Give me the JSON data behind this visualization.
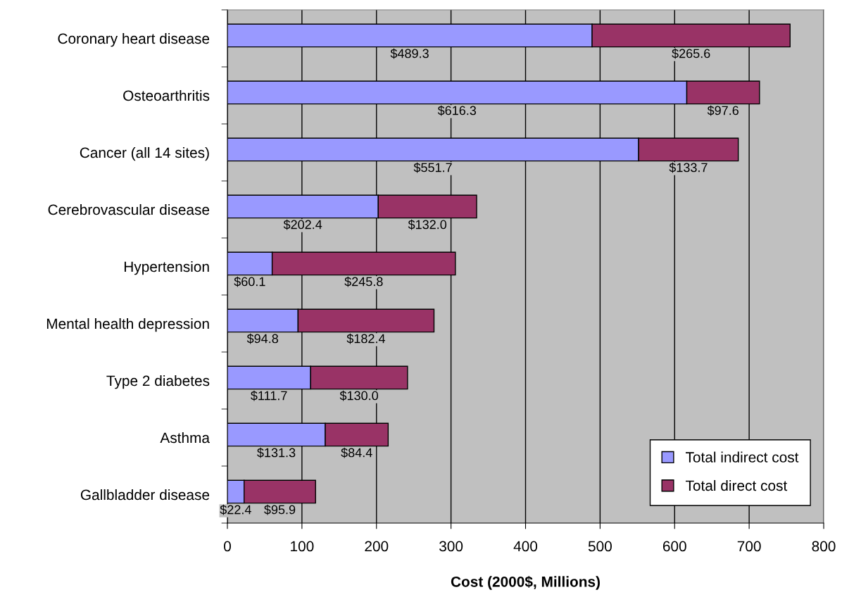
{
  "chart_data": {
    "type": "bar",
    "orientation": "horizontal",
    "stacked": true,
    "categories": [
      "Coronary heart disease",
      "Osteoarthritis",
      "Cancer (all 14 sites)",
      "Cerebrovascular disease",
      "Hypertension",
      "Mental health depression",
      "Type 2 diabetes",
      "Asthma",
      "Gallbladder disease"
    ],
    "series": [
      {
        "name": "Total indirect cost",
        "color": "#9999ff",
        "values": [
          489.3,
          616.3,
          551.7,
          202.4,
          60.1,
          94.8,
          111.7,
          131.3,
          22.4
        ],
        "value_labels": [
          "$489.3",
          "$616.3",
          "$551.7",
          "$202.4",
          "$60.1",
          "$94.8",
          "$111.7",
          "$131.3",
          "$22.4"
        ]
      },
      {
        "name": "Total direct cost",
        "color": "#993366",
        "values": [
          265.6,
          97.6,
          133.7,
          132.0,
          245.8,
          182.4,
          130.0,
          84.4,
          95.9
        ],
        "value_labels": [
          "$265.6",
          "$97.6",
          "$133.7",
          "$132.0",
          "$245.8",
          "$182.4",
          "$130.0",
          "$84.4",
          "$95.9"
        ]
      }
    ],
    "xlabel": "Cost (2000$, Millions)",
    "xlim": [
      0,
      800
    ],
    "xticks": [
      0,
      100,
      200,
      300,
      400,
      500,
      600,
      700,
      800
    ],
    "grid": "x",
    "legend": "bottom right"
  }
}
